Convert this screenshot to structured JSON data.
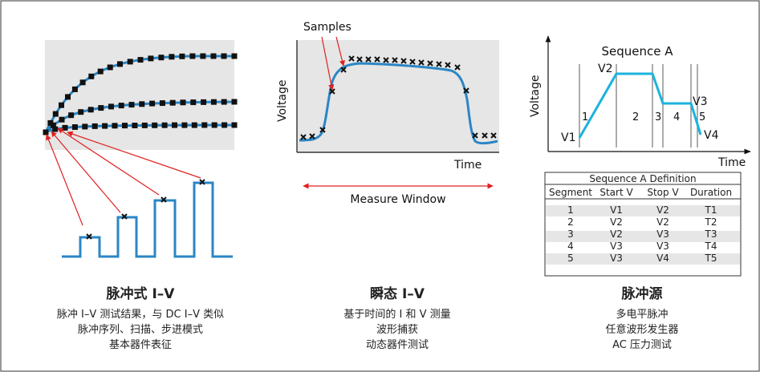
{
  "panel1": {
    "title": "脉冲式 I–V",
    "lines": [
      "脉冲 I–V 测试结果，与 DC I–V 类似",
      "脉冲序列、扫描、步进模式",
      "基本器件表征"
    ]
  },
  "panel2": {
    "samples_label": "Samples",
    "ylabel": "Voltage",
    "xlabel": "Time",
    "window_label": "Measure Window",
    "title": "瞬态 I–V",
    "lines": [
      "基于时间的 I 和 V 测量",
      "波形捕获",
      "动态器件测试"
    ]
  },
  "panel3": {
    "sequence_label": "Sequence A",
    "ylabel": "Voltage",
    "xlabel": "Time",
    "levels": [
      "V1",
      "V2",
      "V3",
      "V4"
    ],
    "segments": [
      "1",
      "2",
      "3",
      "4",
      "5"
    ],
    "table": {
      "caption": "Sequence A Definition",
      "headers": [
        "Segment",
        "Start V",
        "Stop V",
        "Duration"
      ],
      "rows": [
        [
          "1",
          "V1",
          "V2",
          "T1"
        ],
        [
          "2",
          "V2",
          "V2",
          "T2"
        ],
        [
          "3",
          "V2",
          "V3",
          "T3"
        ],
        [
          "4",
          "V3",
          "V3",
          "T4"
        ],
        [
          "5",
          "V3",
          "V4",
          "T5"
        ]
      ]
    },
    "title": "脉冲源",
    "lines": [
      "多电平脉冲",
      "任意波形发生器",
      "AC 压力测试"
    ]
  },
  "colors": {
    "curve": "#2a86c6",
    "cyan": "#1ab3dd",
    "arrow": "#e02020",
    "panel": "#e6e6e6",
    "marker": "#111111"
  }
}
